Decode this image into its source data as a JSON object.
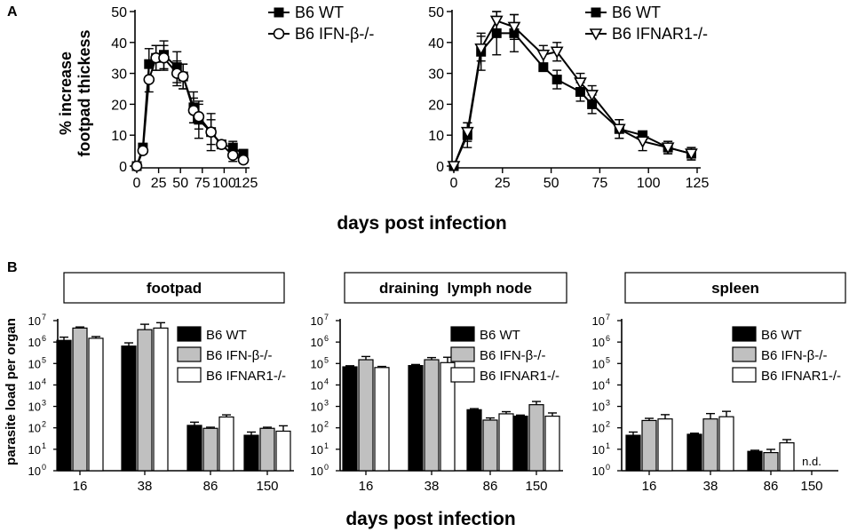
{
  "panel_labels": {
    "a": "A",
    "b": "B"
  },
  "shared": {
    "xlabel": "days post infection",
    "nd_label": "n.d."
  },
  "chart_data": [
    {
      "id": "A1",
      "type": "line",
      "title": "",
      "xlabel": "days post infection",
      "ylabel_line1": "% increase",
      "ylabel_line2": "footpad thickess",
      "xlim": [
        0,
        125
      ],
      "ylim": [
        0,
        50
      ],
      "xticks": [
        0,
        25,
        50,
        75,
        100,
        125
      ],
      "yticks": [
        0,
        10,
        20,
        30,
        40,
        50
      ],
      "legend_position": "top-right",
      "series": [
        {
          "name": "B6 WT",
          "marker": "square-filled",
          "x": [
            0,
            7,
            14,
            22,
            31,
            46,
            53,
            65,
            71,
            85,
            97,
            110,
            122
          ],
          "y": [
            0,
            6,
            33,
            35,
            36,
            32,
            29,
            19,
            15,
            11,
            7,
            6,
            4
          ],
          "err": [
            0.5,
            1,
            5,
            4,
            4.5,
            5,
            4,
            5,
            6,
            6,
            1,
            2,
            1
          ]
        },
        {
          "name": "B6 IFN-β-/-",
          "marker": "circle-open",
          "x": [
            0,
            7,
            14,
            22,
            31,
            46,
            53,
            65,
            71,
            85,
            97,
            110,
            122
          ],
          "y": [
            0,
            5,
            28,
            35,
            35,
            30,
            29,
            18,
            16,
            11,
            7,
            3.5,
            2
          ],
          "err": [
            0.5,
            1,
            4,
            4,
            4,
            4,
            4,
            4,
            4,
            4,
            1,
            2,
            1
          ]
        }
      ]
    },
    {
      "id": "A2",
      "type": "line",
      "title": "",
      "xlabel": "days post infection",
      "xlim": [
        0,
        125
      ],
      "ylim": [
        0,
        50
      ],
      "xticks": [
        0,
        25,
        50,
        75,
        100,
        125
      ],
      "yticks": [
        0,
        10,
        20,
        30,
        40,
        50
      ],
      "legend_position": "top-right",
      "series": [
        {
          "name": "B6 WT",
          "marker": "square-filled",
          "x": [
            0,
            7,
            14,
            22,
            31,
            46,
            53,
            65,
            71,
            85,
            97,
            110,
            122
          ],
          "y": [
            0,
            10,
            37,
            43,
            43,
            32,
            28,
            24,
            20,
            12,
            10,
            6,
            4
          ],
          "err": [
            0.5,
            4,
            6,
            7,
            6,
            1,
            3,
            3,
            3,
            3,
            1,
            2,
            2
          ]
        },
        {
          "name": "B6 IFNAR1-/-",
          "marker": "triangle-down-open",
          "x": [
            0,
            7,
            14,
            22,
            31,
            46,
            53,
            65,
            71,
            85,
            97,
            110,
            122
          ],
          "y": [
            0,
            11,
            38,
            47,
            45,
            36,
            37,
            27,
            23,
            12,
            8,
            6,
            4
          ],
          "err": [
            0.5,
            3,
            4,
            3,
            4,
            3,
            3,
            3,
            3,
            3,
            3,
            2,
            2
          ]
        }
      ]
    },
    {
      "id": "B1",
      "type": "bar",
      "title": "footpad",
      "ylabel": "parasite load per organ",
      "log_y": true,
      "ylim_exp": [
        0,
        7
      ],
      "categories": [
        "16",
        "38",
        "86",
        "150"
      ],
      "legend_position": "top-right",
      "series": [
        {
          "name": "B6 WT",
          "fill": "#000000",
          "values": [
            1200000,
            650000,
            130,
            45
          ],
          "err_exp": [
            0.15,
            0.15,
            0.15,
            0.15
          ]
        },
        {
          "name": "B6 IFN-β-/-",
          "fill": "#c0c0c0",
          "values": [
            4500000,
            3800000,
            95,
            95
          ],
          "err_exp": [
            0.05,
            0.25,
            0.05,
            0.05
          ]
        },
        {
          "name": "B6 IFNAR1-/-",
          "fill": "#ffffff",
          "values": [
            1500000,
            4500000,
            320,
            70
          ],
          "err_exp": [
            0.08,
            0.25,
            0.1,
            0.25
          ]
        }
      ],
      "annotations": []
    },
    {
      "id": "B2",
      "type": "bar",
      "title": "draining  lymph node",
      "log_y": true,
      "ylim_exp": [
        0,
        7
      ],
      "categories": [
        "16",
        "38",
        "86",
        "150"
      ],
      "legend_position": "top-right",
      "series": [
        {
          "name": "B6 WT",
          "fill": "#000000",
          "values": [
            70000,
            80000,
            700,
            350
          ],
          "err_exp": [
            0.05,
            0.05,
            0.05,
            0.05
          ]
        },
        {
          "name": "B6 IFN-β-/-",
          "fill": "#c0c0c0",
          "values": [
            150000,
            150000,
            230,
            1200
          ],
          "err_exp": [
            0.15,
            0.1,
            0.1,
            0.15
          ]
        },
        {
          "name": "B6 IFNAR1-/-",
          "fill": "#ffffff",
          "values": [
            65000,
            110000,
            450,
            350
          ],
          "err_exp": [
            0.05,
            0.25,
            0.1,
            0.15
          ]
        }
      ],
      "annotations": []
    },
    {
      "id": "B3",
      "type": "bar",
      "title": "spleen",
      "log_y": true,
      "ylim_exp": [
        0,
        7
      ],
      "categories": [
        "16",
        "38",
        "86",
        "150"
      ],
      "legend_position": "top-right",
      "series": [
        {
          "name": "B6 WT",
          "fill": "#000000",
          "values": [
            45,
            50,
            8,
            null
          ],
          "err_exp": [
            0.15,
            0.05,
            0.05,
            0
          ]
        },
        {
          "name": "B6 IFN-β-/-",
          "fill": "#c0c0c0",
          "values": [
            220,
            260,
            7,
            null
          ],
          "err_exp": [
            0.1,
            0.25,
            0.15,
            0
          ]
        },
        {
          "name": "B6 IFNAR1-/-",
          "fill": "#ffffff",
          "values": [
            260,
            330,
            20,
            null
          ],
          "err_exp": [
            0.2,
            0.25,
            0.15,
            0
          ]
        }
      ],
      "annotations": [
        {
          "category": "150",
          "text": "n.d."
        }
      ]
    }
  ]
}
